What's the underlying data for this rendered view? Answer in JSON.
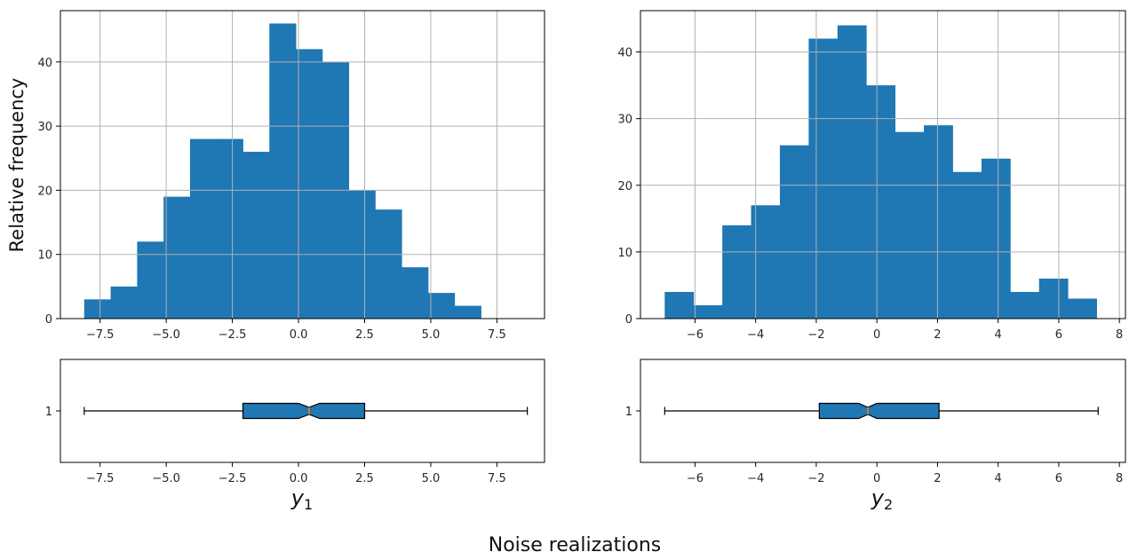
{
  "figure": {
    "ylabel": "Relative frequency",
    "suptitle": "Noise realizations",
    "bar_color": "#1f77b4",
    "grid_color": "#b0b0b0",
    "median_color": "#ff7f0e"
  },
  "chart_data": [
    {
      "type": "bar",
      "subtype": "histogram",
      "variable": "y1",
      "bin_start": -8.1,
      "bin_width": 1.0,
      "counts": [
        3,
        5,
        12,
        19,
        28,
        28,
        26,
        46,
        42,
        40,
        20,
        17,
        8,
        4,
        2
      ],
      "xlim": [
        -9.0,
        9.3
      ],
      "ylim": [
        0,
        48
      ],
      "xticks": [
        -7.5,
        -5.0,
        -2.5,
        0.0,
        2.5,
        5.0,
        7.5
      ],
      "xtick_labels": [
        "−7.5",
        "−5.0",
        "−2.5",
        "0.0",
        "2.5",
        "5.0",
        "7.5"
      ],
      "yticks": [
        0,
        10,
        20,
        30,
        40
      ],
      "ytick_labels": [
        "0",
        "10",
        "20",
        "30",
        "40"
      ],
      "grid": true
    },
    {
      "type": "bar",
      "subtype": "histogram",
      "variable": "y2",
      "bin_start": -7.0,
      "bin_width": 0.95,
      "counts": [
        4,
        2,
        14,
        17,
        26,
        42,
        44,
        35,
        28,
        29,
        22,
        24,
        4,
        6,
        3
      ],
      "xlim": [
        -7.8,
        8.2
      ],
      "ylim": [
        0,
        46.2
      ],
      "xticks": [
        -6,
        -4,
        -2,
        0,
        2,
        4,
        6,
        8
      ],
      "xtick_labels": [
        "−6",
        "−4",
        "−2",
        "0",
        "2",
        "4",
        "6",
        "8"
      ],
      "yticks": [
        0,
        10,
        20,
        30,
        40
      ],
      "ytick_labels": [
        "0",
        "10",
        "20",
        "30",
        "40"
      ],
      "grid": true
    },
    {
      "type": "boxplot",
      "variable": "y1",
      "orientation": "horizontal",
      "notch": true,
      "whisker_low": -8.1,
      "q1": -2.1,
      "median": 0.4,
      "notch_low": 0.0,
      "notch_high": 0.8,
      "q3": 2.5,
      "whisker_high": 8.65,
      "xlim": [
        -9.0,
        9.3
      ],
      "ytick_labels": [
        "1"
      ],
      "xticks": [
        -7.5,
        -5.0,
        -2.5,
        0.0,
        2.5,
        5.0,
        7.5
      ],
      "xtick_labels": [
        "−7.5",
        "−5.0",
        "−2.5",
        "0.0",
        "2.5",
        "5.0",
        "7.5"
      ],
      "xlabel_main": "y",
      "xlabel_sub": "1"
    },
    {
      "type": "boxplot",
      "variable": "y2",
      "orientation": "horizontal",
      "notch": true,
      "whisker_low": -7.0,
      "q1": -1.9,
      "median": -0.3,
      "notch_low": -0.6,
      "notch_high": 0.0,
      "q3": 2.05,
      "whisker_high": 7.3,
      "xlim": [
        -7.8,
        8.2
      ],
      "ytick_labels": [
        "1"
      ],
      "xticks": [
        -6,
        -4,
        -2,
        0,
        2,
        4,
        6,
        8
      ],
      "xtick_labels": [
        "−6",
        "−4",
        "−2",
        "0",
        "2",
        "4",
        "6",
        "8"
      ],
      "xlabel_main": "y",
      "xlabel_sub": "2"
    }
  ]
}
